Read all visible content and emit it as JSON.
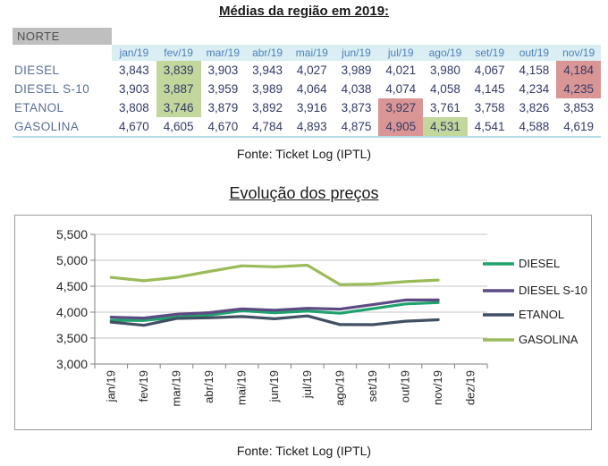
{
  "titles": {
    "table_title": "Médias da região em 2019:",
    "chart_title": "Evolução dos preços",
    "source_top": "Fonte: Ticket Log (IPTL)",
    "source_bottom": "Fonte: Ticket Log (IPTL)"
  },
  "table": {
    "region_label": "NORTE",
    "columns": [
      "jan/19",
      "fev/19",
      "mar/19",
      "abr/19",
      "mai/19",
      "jun/19",
      "jul/19",
      "ago/19",
      "set/19",
      "out/19",
      "nov/19"
    ],
    "rows": [
      {
        "label": "DIESEL",
        "values": [
          "3,843",
          "3,839",
          "3,903",
          "3,943",
          "4,027",
          "3,989",
          "4,021",
          "3,980",
          "4,067",
          "4,158",
          "4,184"
        ],
        "highlights": {
          "1": "min",
          "10": "max"
        }
      },
      {
        "label": "DIESEL S-10",
        "values": [
          "3,903",
          "3,887",
          "3,959",
          "3,989",
          "4,064",
          "4,038",
          "4,074",
          "4,058",
          "4,145",
          "4,234",
          "4,235"
        ],
        "highlights": {
          "1": "min",
          "10": "max"
        }
      },
      {
        "label": "ETANOL",
        "values": [
          "3,808",
          "3,746",
          "3,879",
          "3,892",
          "3,916",
          "3,873",
          "3,927",
          "3,761",
          "3,758",
          "3,826",
          "3,853"
        ],
        "highlights": {
          "1": "min",
          "6": "max"
        }
      },
      {
        "label": "GASOLINA",
        "values": [
          "4,670",
          "4,605",
          "4,670",
          "4,784",
          "4,893",
          "4,875",
          "4,905",
          "4,531",
          "4,541",
          "4,588",
          "4,619"
        ],
        "highlights": {
          "6": "max",
          "7": "min"
        }
      }
    ],
    "colors": {
      "header_bg": "#DAEEF3",
      "header_text": "#4E81BD",
      "region_bg": "#BFBFBF",
      "region_text": "#4d4d4d",
      "label_text": "#5A6E96",
      "value_text": "#333A68",
      "min_bg": "#C3D69B",
      "max_bg": "#D99694",
      "table_bottom_border": "#B7DEE8"
    }
  },
  "chart_data": {
    "type": "line",
    "title": "Evolução dos preços",
    "xlabel": "",
    "ylabel": "",
    "x": [
      "jan/19",
      "fev/19",
      "mar/19",
      "abr/19",
      "mai/19",
      "jun/19",
      "jul/19",
      "ago/19",
      "set/19",
      "out/19",
      "nov/19",
      "dez/19"
    ],
    "series": [
      {
        "name": "DIESEL",
        "color": "#1FA26E",
        "values": [
          3843,
          3839,
          3903,
          3943,
          4027,
          3989,
          4021,
          3980,
          4067,
          4158,
          4184
        ]
      },
      {
        "name": "DIESEL S-10",
        "color": "#5C4A82",
        "values": [
          3903,
          3887,
          3959,
          3989,
          4064,
          4038,
          4074,
          4058,
          4145,
          4234,
          4235
        ]
      },
      {
        "name": "ETANOL",
        "color": "#414F63",
        "values": [
          3808,
          3746,
          3879,
          3892,
          3916,
          3873,
          3927,
          3761,
          3758,
          3826,
          3853
        ]
      },
      {
        "name": "GASOLINA",
        "color": "#9BBB59",
        "values": [
          4670,
          4605,
          4670,
          4784,
          4893,
          4875,
          4905,
          4531,
          4541,
          4588,
          4619
        ]
      }
    ],
    "ylim": [
      3000,
      5500
    ],
    "ytick_step": 500,
    "ytick_labels": [
      "3,000",
      "3,500",
      "4,000",
      "4,500",
      "5,000",
      "5,500"
    ],
    "grid": true,
    "legend_position": "right",
    "axis_color": "#808080",
    "grid_color": "#C6C6C6",
    "tick_label_color": "#262626"
  }
}
